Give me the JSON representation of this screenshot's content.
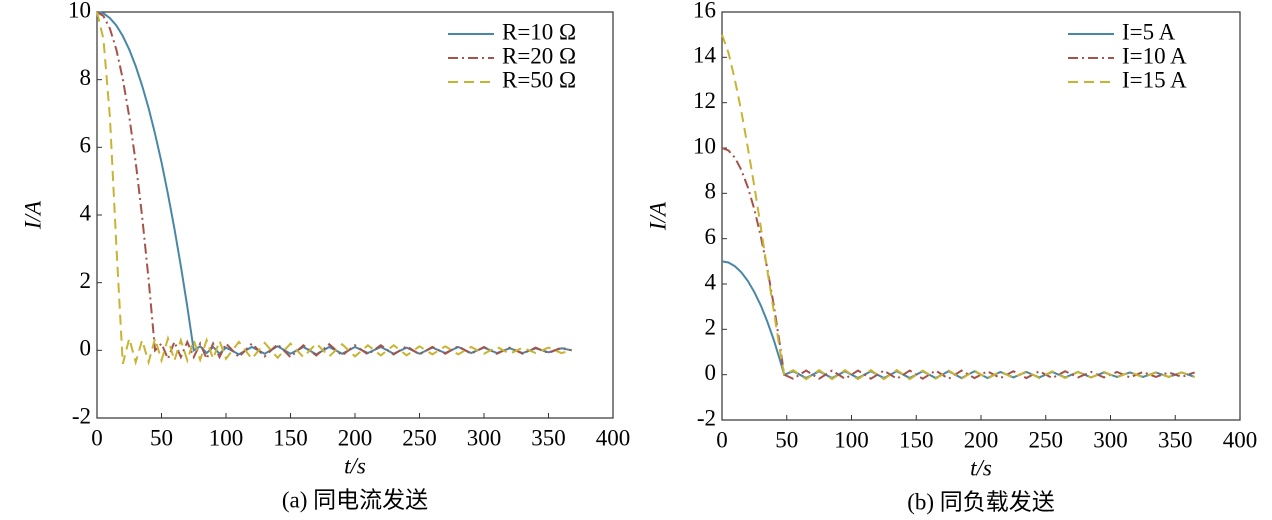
{
  "chart_data": [
    {
      "type": "line",
      "title": "(a) 同电流发送",
      "x_label": "t/s",
      "y_label": "I/A",
      "xlim": [
        0,
        400
      ],
      "xticks": [
        0,
        50,
        100,
        150,
        200,
        250,
        300,
        350,
        400
      ],
      "ylim": [
        -2,
        10
      ],
      "yticks": [
        -2,
        0,
        2,
        4,
        6,
        8,
        10
      ],
      "legend": "upper-right",
      "x": [
        0,
        5,
        10,
        15,
        20,
        25,
        30,
        35,
        40,
        45,
        50,
        55,
        60,
        65,
        70,
        75,
        80,
        85,
        90,
        95,
        100,
        110,
        120,
        130,
        140,
        150,
        160,
        170,
        180,
        190,
        200,
        210,
        220,
        230,
        240,
        250,
        260,
        270,
        280,
        290,
        300,
        310,
        320,
        330,
        340,
        350,
        360,
        368
      ],
      "series": [
        {
          "name": "R=10 Ω",
          "color": "#4a86a8",
          "dash": "solid",
          "values": [
            10,
            9.96,
            9.82,
            9.6,
            9.29,
            8.89,
            8.4,
            7.82,
            7.16,
            6.4,
            5.56,
            4.62,
            3.6,
            2.49,
            1.29,
            0,
            0.12,
            -0.08,
            0.1,
            -0.1,
            0.08,
            -0.12,
            0.1,
            -0.1,
            0.12,
            -0.1,
            0.1,
            -0.12,
            0.1,
            -0.1,
            0.1,
            -0.08,
            0.1,
            -0.1,
            0.08,
            -0.1,
            0.08,
            -0.08,
            0.1,
            -0.08,
            0.08,
            -0.08,
            0.06,
            -0.08,
            0.06,
            -0.06,
            0.06,
            0
          ]
        },
        {
          "name": "R=20 Ω",
          "color": "#a5524a",
          "dash": "dashdot",
          "values": [
            10,
            9.88,
            9.51,
            8.89,
            8.02,
            6.91,
            5.56,
            3.95,
            2.1,
            0,
            0.2,
            -0.25,
            0.25,
            -0.2,
            0.25,
            -0.2,
            0.2,
            -0.25,
            0.2,
            -0.2,
            0.2,
            -0.2,
            0.2,
            -0.18,
            0.18,
            -0.2,
            0.15,
            -0.15,
            0.18,
            -0.15,
            0.15,
            -0.12,
            0.15,
            -0.12,
            0.12,
            -0.12,
            0.1,
            -0.1,
            0.12,
            -0.1,
            0.1,
            -0.1,
            0.08,
            -0.1,
            0.08,
            -0.08,
            0.08,
            0
          ]
        },
        {
          "name": "R=50 Ω",
          "color": "#c8b432",
          "dash": "dashed",
          "values": [
            10,
            9.2,
            6.9,
            3.1,
            -0.4,
            0.35,
            -0.35,
            0.3,
            -0.35,
            0.35,
            -0.3,
            0.35,
            -0.3,
            0.3,
            -0.3,
            0.3,
            -0.28,
            0.3,
            -0.25,
            0.28,
            -0.25,
            0.25,
            -0.25,
            0.22,
            -0.22,
            0.2,
            -0.2,
            0.2,
            -0.18,
            0.18,
            -0.18,
            0.15,
            -0.15,
            0.15,
            -0.15,
            0.12,
            -0.12,
            0.12,
            -0.12,
            0.1,
            -0.1,
            0.1,
            -0.1,
            0.08,
            -0.08,
            0.08,
            -0.08,
            0
          ]
        }
      ]
    },
    {
      "type": "line",
      "title": "(b) 同负载发送",
      "x_label": "t/s",
      "y_label": "I/A",
      "xlim": [
        0,
        400
      ],
      "xticks": [
        0,
        50,
        100,
        150,
        200,
        250,
        300,
        350,
        400
      ],
      "ylim": [
        -2,
        16
      ],
      "yticks": [
        -2,
        0,
        2,
        4,
        6,
        8,
        10,
        12,
        14,
        16
      ],
      "legend": "upper-right",
      "x": [
        0,
        5,
        10,
        15,
        20,
        25,
        30,
        35,
        40,
        45,
        48,
        55,
        65,
        75,
        85,
        95,
        105,
        115,
        125,
        135,
        145,
        155,
        165,
        175,
        185,
        195,
        205,
        215,
        225,
        235,
        245,
        255,
        265,
        275,
        285,
        295,
        305,
        315,
        325,
        335,
        345,
        355,
        365
      ],
      "series": [
        {
          "name": "I=5 A",
          "color": "#4a86a8",
          "dash": "solid",
          "values": [
            5,
            4.95,
            4.78,
            4.51,
            4.13,
            3.64,
            3.05,
            2.34,
            1.53,
            0.6,
            0,
            0.15,
            -0.15,
            0.15,
            -0.15,
            0.15,
            -0.15,
            0.15,
            -0.15,
            0.15,
            -0.15,
            0.15,
            -0.15,
            0.15,
            -0.15,
            0.15,
            -0.15,
            0.12,
            -0.12,
            0.12,
            -0.12,
            0.12,
            -0.12,
            0.12,
            -0.12,
            0.1,
            -0.1,
            0.1,
            -0.1,
            0.1,
            -0.1,
            0.1,
            -0.1
          ]
        },
        {
          "name": "I=10 A",
          "color": "#a5524a",
          "dash": "dashdot",
          "values": [
            10,
            9.89,
            9.57,
            9.02,
            8.26,
            7.29,
            6.09,
            4.68,
            3.06,
            1.21,
            0,
            -0.18,
            0.18,
            -0.18,
            0.18,
            -0.18,
            0.18,
            -0.18,
            0.18,
            -0.18,
            0.18,
            -0.18,
            0.18,
            -0.18,
            0.18,
            -0.15,
            0.15,
            -0.15,
            0.15,
            -0.15,
            0.15,
            -0.15,
            0.15,
            -0.12,
            0.12,
            -0.12,
            0.12,
            -0.12,
            0.12,
            -0.1,
            0.1,
            -0.1,
            0.1
          ]
        },
        {
          "name": "I=15 A",
          "color": "#c8b432",
          "dash": "dashed",
          "values": [
            15,
            14.2,
            13,
            11.6,
            10,
            8.3,
            6.5,
            4.6,
            2.8,
            1,
            0,
            0.2,
            -0.2,
            0.2,
            -0.2,
            0.2,
            -0.2,
            0.2,
            -0.2,
            0.2,
            -0.2,
            0.18,
            -0.18,
            0.18,
            -0.18,
            0.18,
            -0.18,
            0.15,
            -0.15,
            0.15,
            -0.15,
            0.15,
            -0.15,
            0.12,
            -0.12,
            0.12,
            -0.12,
            0.12,
            -0.12,
            0.1,
            -0.1,
            0.1,
            -0.1
          ]
        }
      ]
    }
  ]
}
